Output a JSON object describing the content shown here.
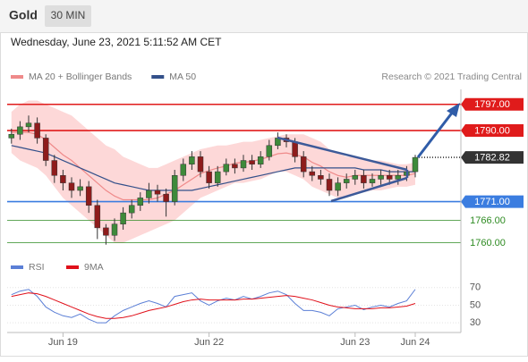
{
  "header": {
    "title": "Gold",
    "badge": "30 MIN",
    "timestamp": "Wednesday, June 23, 2021 5:11:52 AM CET"
  },
  "chart_data": [
    {
      "type": "candlestick",
      "source": "Research © 2021 Trading Central",
      "categories": [
        null,
        null,
        null,
        null,
        null,
        null,
        "Jun 19",
        null,
        null,
        null,
        null,
        null,
        null,
        null,
        null,
        null,
        null,
        null,
        null,
        null,
        null,
        null,
        null,
        "Jun 22",
        null,
        null,
        null,
        null,
        null,
        null,
        null,
        null,
        null,
        null,
        null,
        null,
        null,
        null,
        null,
        null,
        "Jun 23",
        null,
        null,
        null,
        null,
        null,
        null,
        "Jun 24"
      ],
      "open": [
        1788,
        1789,
        1791,
        1792,
        1788,
        1782,
        1778,
        1776,
        1774,
        1775,
        1770,
        1764,
        1762,
        1765,
        1768,
        1770,
        1772,
        1774,
        1773,
        1771,
        1778,
        1781,
        1783,
        1779,
        1776,
        1779,
        1781,
        1780,
        1782,
        1781,
        1783,
        1786,
        1788,
        1787,
        1783,
        1779,
        1778,
        1777,
        1774,
        1776,
        1777,
        1778,
        1776,
        1777,
        1778,
        1777,
        1778,
        1779
      ],
      "high": [
        1790.5,
        1792.5,
        1794,
        1793.5,
        1789,
        1783.5,
        1779.5,
        1777.5,
        1777,
        1776.5,
        1771.5,
        1765,
        1766.5,
        1769.5,
        1771.5,
        1773.5,
        1776,
        1775.5,
        1774.5,
        1779.5,
        1782.5,
        1784.5,
        1784.5,
        1780.5,
        1780.5,
        1782.5,
        1782.5,
        1783.5,
        1783.5,
        1784.5,
        1787.5,
        1789.5,
        1789,
        1788,
        1784.5,
        1780.5,
        1779.5,
        1778.5,
        1777.5,
        1778.5,
        1779.5,
        1779.5,
        1778.5,
        1779.5,
        1779.5,
        1779.5,
        1780.5,
        1783.5
      ],
      "low": [
        1786.5,
        1787.5,
        1789.5,
        1786.5,
        1780.5,
        1776,
        1774,
        1772,
        1772.5,
        1768,
        1761,
        1759.5,
        1760.5,
        1763.5,
        1766.5,
        1768.5,
        1770.5,
        1771,
        1767,
        1770,
        1776.5,
        1779.5,
        1777.5,
        1774.5,
        1775,
        1778,
        1778.5,
        1779,
        1779.5,
        1780,
        1782,
        1785,
        1785.5,
        1781.5,
        1777.5,
        1776.5,
        1775.5,
        1772.5,
        1772.5,
        1774.5,
        1775.5,
        1774.5,
        1775,
        1775.5,
        1775.5,
        1775.5,
        1776.5,
        1777.5
      ],
      "close": [
        1789,
        1791,
        1792,
        1788,
        1782,
        1778,
        1776,
        1774,
        1775,
        1770,
        1764,
        1762,
        1765,
        1768,
        1770,
        1772,
        1774,
        1773,
        1771,
        1778,
        1781,
        1783,
        1779,
        1776,
        1779,
        1781,
        1780,
        1782,
        1781,
        1783,
        1786,
        1788,
        1787,
        1783,
        1779,
        1778,
        1777,
        1774,
        1776,
        1777,
        1778,
        1776,
        1777,
        1778,
        1777,
        1778,
        1779,
        1782.82
      ],
      "up_color": "#3e8a3a",
      "down_color": "#8e1c1c",
      "series": [
        {
          "name": "MA 20 + Bollinger Bands",
          "color": "#ef8a8a",
          "band_color": "#fdd8d8",
          "values": [
            1789.5,
            1789.5,
            1789.5,
            1789,
            1787.5,
            1785.5,
            1783.5,
            1782,
            1780,
            1778,
            1776,
            1774,
            1772.5,
            1771.5,
            1771.5,
            1771.5,
            1771.5,
            1772,
            1773,
            1774,
            1775.5,
            1777,
            1778.5,
            1779.3,
            1780,
            1780.5,
            1781.3,
            1781.5,
            1781.8,
            1782.3,
            1783,
            1783.8,
            1784,
            1783.5,
            1783,
            1781.5,
            1780.5,
            1779,
            1778,
            1777.5,
            1778,
            1778,
            1778,
            1778,
            1778,
            1778,
            1778,
            1778.5
          ],
          "upper": [
            1795,
            1797,
            1798,
            1798,
            1797,
            1796,
            1795,
            1794,
            1792,
            1790,
            1788,
            1786,
            1785,
            1783,
            1782,
            1781,
            1780,
            1780,
            1781,
            1782,
            1783,
            1784,
            1785,
            1785.5,
            1786,
            1786,
            1786.5,
            1787,
            1787,
            1787.5,
            1788,
            1788.5,
            1789,
            1789,
            1789,
            1788,
            1787,
            1785,
            1784,
            1783,
            1783,
            1782.5,
            1782,
            1782,
            1781.5,
            1781,
            1781,
            1781.5
          ],
          "lower": [
            1784,
            1782,
            1781,
            1780,
            1778,
            1775,
            1772,
            1770,
            1768,
            1766,
            1764,
            1762,
            1760,
            1760,
            1761,
            1762,
            1763,
            1764,
            1765,
            1766,
            1768,
            1770,
            1772,
            1773,
            1774,
            1775,
            1776,
            1776,
            1776.5,
            1777,
            1778,
            1779,
            1779,
            1778,
            1777,
            1775,
            1774,
            1773,
            1772,
            1772,
            1773,
            1773.5,
            1774,
            1774,
            1774.5,
            1775,
            1775,
            1775.5
          ]
        },
        {
          "name": "MA 50",
          "color": "#33508a",
          "values": [
            1786,
            1785.5,
            1785,
            1784.5,
            1784,
            1783,
            1782,
            1781,
            1780,
            1779,
            1778,
            1777,
            1776,
            1775.5,
            1775,
            1774.5,
            1774,
            1774,
            1774,
            1774,
            1774,
            1774,
            1774.5,
            1775,
            1775.5,
            1776,
            1776.5,
            1777,
            1777.5,
            1778,
            1778.5,
            1779,
            1779.5,
            1780,
            1780,
            1780,
            1780,
            1780,
            1780,
            1780,
            1780,
            1779.5,
            1779.5,
            1779.5,
            1779,
            1779,
            1779,
            1779
          ]
        }
      ],
      "ylim": [
        1758,
        1801
      ],
      "levels": [
        {
          "value": 1797,
          "label": "1797.00",
          "color": "#e01b1b",
          "label_style": "box"
        },
        {
          "value": 1790,
          "label": "1790.00",
          "color": "#e01b1b",
          "label_style": "box"
        },
        {
          "value": 1782.82,
          "label": "1782.82",
          "color": "#333333",
          "label_style": "box",
          "line": "dotted"
        },
        {
          "value": 1771,
          "label": "1771.00",
          "color": "#3b7de0",
          "label_style": "box"
        },
        {
          "value": 1766,
          "label": "1766.00",
          "color": "#2e8b22",
          "label_style": "plain"
        },
        {
          "value": 1760,
          "label": "1760.00",
          "color": "#2e8b22",
          "label_style": "plain"
        }
      ]
    },
    {
      "type": "line",
      "series": [
        {
          "name": "RSI",
          "color": "#5b7fd6",
          "values": [
            62,
            66,
            68,
            60,
            48,
            42,
            38,
            36,
            40,
            34,
            30,
            30,
            38,
            44,
            48,
            52,
            55,
            52,
            48,
            60,
            62,
            64,
            55,
            50,
            55,
            58,
            56,
            60,
            57,
            60,
            64,
            66,
            62,
            52,
            44,
            44,
            42,
            38,
            46,
            48,
            50,
            45,
            48,
            50,
            48,
            52,
            55,
            68
          ]
        },
        {
          "name": "9MA",
          "color": "#e0101a",
          "values": [
            60,
            62,
            64,
            63,
            60,
            56,
            52,
            48,
            44,
            40,
            37,
            35,
            35,
            36,
            38,
            41,
            44,
            46,
            48,
            51,
            54,
            56,
            57,
            56,
            56,
            56,
            56,
            57,
            57,
            58,
            59,
            60,
            61,
            60,
            58,
            56,
            53,
            50,
            48,
            47,
            46,
            46,
            46,
            47,
            47,
            48,
            49,
            52
          ]
        }
      ],
      "ylim": [
        19,
        84
      ],
      "yticks": [
        30,
        50,
        70
      ]
    }
  ]
}
